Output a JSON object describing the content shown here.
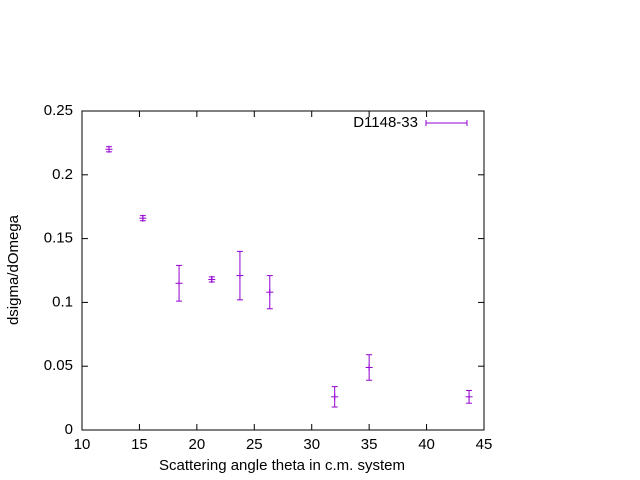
{
  "chart_data": {
    "type": "errorbar",
    "x_label": "Scattering angle theta in c.m. system",
    "y_label": "dsigma/dOmega",
    "series": [
      {
        "name": "D1148-33",
        "color": "#9400d3",
        "x": [
          12.35,
          15.3,
          18.45,
          21.3,
          23.75,
          26.35,
          32.0,
          35.0,
          43.7
        ],
        "values": [
          0.22,
          0.166,
          0.115,
          0.118,
          0.121,
          0.108,
          0.026,
          0.049,
          0.026
        ],
        "yerr": [
          0.002,
          0.002,
          0.014,
          0.002,
          0.019,
          0.013,
          0.008,
          0.01,
          0.005
        ]
      }
    ],
    "xlim": [
      10,
      45
    ],
    "xticks": [
      10,
      15,
      20,
      25,
      30,
      35,
      40,
      45
    ],
    "ylim": [
      0,
      0.25
    ],
    "yticks": [
      0,
      0.05,
      0.1,
      0.15,
      0.2,
      0.25
    ],
    "grid": false,
    "legend": "top-right"
  }
}
